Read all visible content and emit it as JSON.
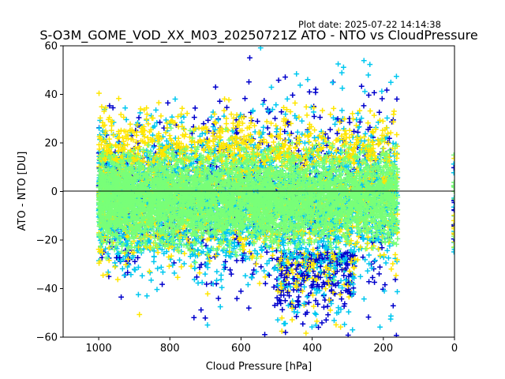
{
  "chart_data": {
    "type": "scatter",
    "title": "S-O3M_GOME_VOD_XX_M03_20250721Z ATO - NTO vs CloudPressure",
    "plot_date": "Plot date: 2025-07-22 14:14:38",
    "xlabel": "Cloud Pressure [hPa]",
    "ylabel": "ATO - NTO [DU]",
    "xlim": [
      1100,
      0
    ],
    "ylim": [
      -60,
      60
    ],
    "x_ticks": [
      1000,
      800,
      600,
      400,
      200,
      0
    ],
    "y_ticks": [
      -60,
      -40,
      -20,
      0,
      20,
      40,
      60
    ],
    "reference_line_y": 0,
    "marker": "plus",
    "grid": false,
    "legend": "none",
    "colors": [
      "#0000cc",
      "#00c8f0",
      "#ffe600",
      "#78ff78"
    ],
    "main_cloud": {
      "x_range": [
        1000,
        160
      ],
      "y_center": -3,
      "y_spread_core": [
        -18,
        15
      ],
      "y_spread_outer": [
        -60,
        58
      ]
    },
    "edge_points_at_x0": {
      "x": 0,
      "y_range": [
        -25,
        15
      ]
    }
  }
}
